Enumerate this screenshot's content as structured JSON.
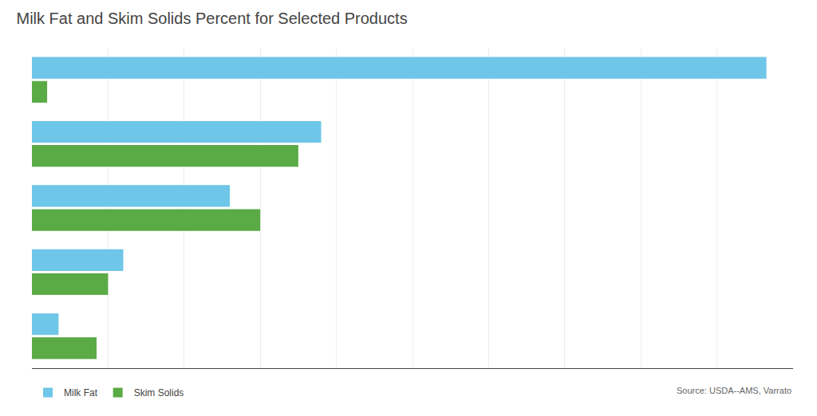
{
  "chart_data": {
    "type": "bar",
    "orientation": "horizontal",
    "title": "Milk Fat and Skim Solids Percent for Selected Products",
    "categories": [
      null,
      null,
      null,
      null,
      null
    ],
    "series": [
      {
        "name": "Milk Fat",
        "color": "#6ec6e8",
        "values": [
          96.5,
          38.0,
          26.0,
          12.0,
          3.5
        ]
      },
      {
        "name": "Skim Solids",
        "color": "#5aaa46",
        "values": [
          2.0,
          35.0,
          30.0,
          10.0,
          8.5
        ]
      }
    ],
    "xlim": [
      0,
      100
    ],
    "xticks": [
      0,
      10,
      20,
      30,
      40,
      50,
      60,
      70,
      80,
      90,
      100
    ],
    "grid": true,
    "tick_labels": false,
    "legend": "lower left",
    "annotations": [
      "Source: USDA--AMS, Varrato"
    ]
  }
}
